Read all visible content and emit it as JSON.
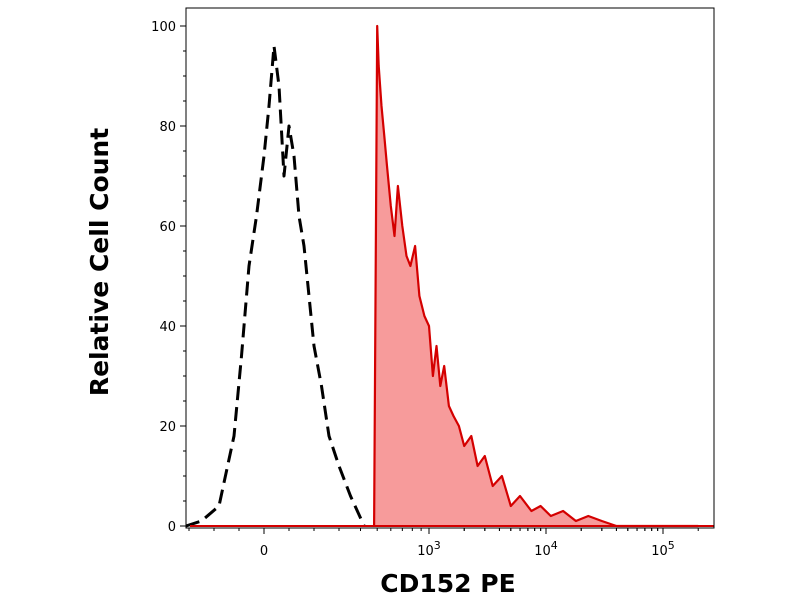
{
  "chart_data": {
    "type": "area",
    "title": "",
    "xlabel": "CD152 PE",
    "ylabel": "Relative Cell Count",
    "x_scale": "biexponential",
    "xlim": [
      -400,
      200000
    ],
    "ylim": [
      0,
      100
    ],
    "grid": false,
    "y_ticks": [
      {
        "value": 0,
        "label": "0"
      },
      {
        "value": 20,
        "label": "20"
      },
      {
        "value": 40,
        "label": "40"
      },
      {
        "value": 60,
        "label": "60"
      },
      {
        "value": 80,
        "label": "80"
      },
      {
        "value": 100,
        "label": "100"
      }
    ],
    "x_ticks": [
      {
        "value": 0,
        "base": "0",
        "exp": ""
      },
      {
        "value": 1000,
        "base": "10",
        "exp": "3"
      },
      {
        "value": 10000,
        "base": "10",
        "exp": "4"
      },
      {
        "value": 100000,
        "base": "10",
        "exp": "5"
      }
    ],
    "series": [
      {
        "style": "dashed-outline",
        "color": "#000000",
        "x": [
          -350,
          -250,
          -180,
          -120,
          -90,
          -60,
          -30,
          0,
          20,
          40,
          60,
          80,
          100,
          120,
          140,
          160,
          180,
          200,
          230,
          260,
          300,
          350,
          420
        ],
        "y": [
          0,
          1,
          4,
          18,
          34,
          52,
          62,
          74,
          84,
          96,
          88,
          70,
          80,
          74,
          62,
          56,
          46,
          36,
          28,
          18,
          12,
          6,
          0
        ]
      },
      {
        "style": "filled",
        "color": "#d40000",
        "fill": "#f79b9b",
        "x": [
          480,
          500,
          510,
          530,
          550,
          570,
          600,
          630,
          660,
          700,
          740,
          780,
          830,
          880,
          940,
          1000,
          1080,
          1160,
          1250,
          1350,
          1480,
          1620,
          1800,
          2000,
          2300,
          2600,
          3000,
          3500,
          4200,
          5000,
          6000,
          7500,
          9000,
          11000,
          14000,
          18000,
          23000,
          30000,
          40000,
          60000,
          100000,
          200000
        ],
        "y": [
          0,
          100,
          92,
          84,
          78,
          72,
          64,
          58,
          68,
          60,
          54,
          52,
          56,
          46,
          42,
          40,
          30,
          36,
          28,
          32,
          24,
          22,
          20,
          16,
          18,
          12,
          14,
          8,
          10,
          4,
          6,
          3,
          4,
          2,
          3,
          1,
          2,
          1,
          0,
          0,
          0,
          0
        ]
      }
    ]
  }
}
